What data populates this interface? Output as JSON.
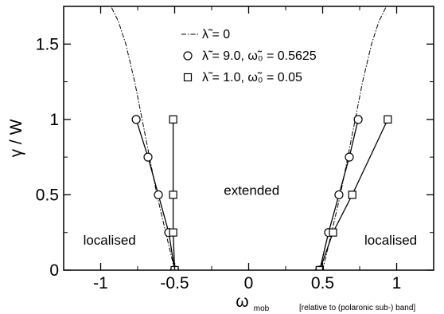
{
  "chart_data": {
    "type": "line",
    "xlabel": "ω",
    "xlabel_sub": "mob",
    "xlabel_note": "[relative to (polaronic sub-) band]",
    "ylabel": "γ / W",
    "xlim": [
      -1.25,
      1.25
    ],
    "ylim": [
      0,
      1.75
    ],
    "x_ticks": [
      -1,
      -0.5,
      0,
      0.5,
      1
    ],
    "x_tick_labels": [
      "-1",
      "-0.5",
      "0",
      "0.5",
      "1"
    ],
    "y_ticks": [
      0,
      0.5,
      1,
      1.5
    ],
    "y_tick_labels": [
      "0",
      "0.5",
      "1",
      "1.5"
    ],
    "grid": false,
    "legend_position": "top-center",
    "annotations": [
      {
        "text": "extended",
        "x": 0.02,
        "y": 0.5
      },
      {
        "text": "localised",
        "x": -0.94,
        "y": 0.17
      },
      {
        "text": "localised",
        "x": 0.96,
        "y": 0.17
      }
    ],
    "series": [
      {
        "name": "λ̃ = 0",
        "style": "dash-dot",
        "marker": "none",
        "color": "#000000",
        "branches": [
          {
            "x": [
              -0.5,
              -0.56,
              -0.62,
              -0.67,
              -0.72,
              -0.77,
              -0.83,
              -0.88,
              -0.93
            ],
            "y": [
              0,
              0.25,
              0.5,
              0.75,
              1.0,
              1.25,
              1.5,
              1.65,
              1.75
            ]
          },
          {
            "x": [
              0.5,
              0.56,
              0.62,
              0.67,
              0.72,
              0.77,
              0.83,
              0.88,
              0.93
            ],
            "y": [
              0,
              0.25,
              0.5,
              0.75,
              1.0,
              1.25,
              1.5,
              1.65,
              1.75
            ]
          }
        ]
      },
      {
        "name": "λ̃ = 9.0,  ω̃₀ = 0.5625",
        "style": "solid",
        "marker": "circle",
        "color": "#000000",
        "branches": [
          {
            "x": [
              -0.5,
              -0.54,
              -0.61,
              -0.68,
              -0.76
            ],
            "y": [
              0,
              0.25,
              0.5,
              0.75,
              1.0
            ]
          },
          {
            "x": [
              0.48,
              0.54,
              0.61,
              0.68,
              0.74
            ],
            "y": [
              0,
              0.25,
              0.5,
              0.75,
              1.0
            ]
          }
        ]
      },
      {
        "name": "λ̃ = 1.0,  ω̃₀ = 0.05",
        "style": "solid",
        "marker": "square",
        "color": "#000000",
        "branches": [
          {
            "x": [
              -0.5,
              -0.51,
              -0.51,
              -0.51
            ],
            "y": [
              0,
              0.25,
              0.5,
              1.0
            ]
          },
          {
            "x": [
              0.48,
              0.57,
              0.7,
              0.94
            ],
            "y": [
              0,
              0.25,
              0.5,
              1.0
            ]
          }
        ]
      }
    ]
  }
}
